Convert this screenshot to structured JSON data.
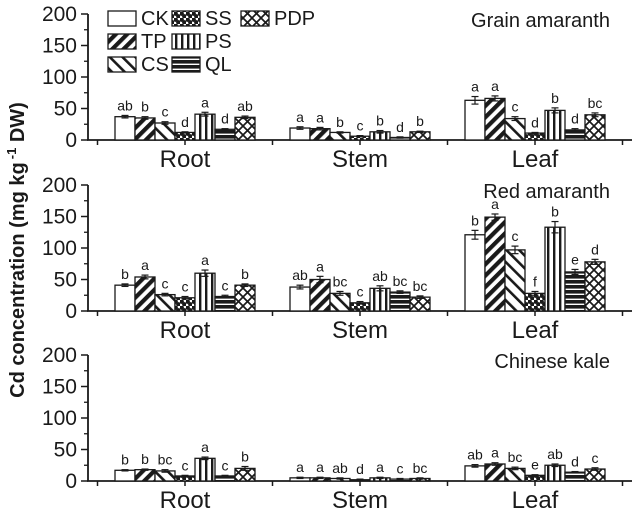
{
  "figure": {
    "ylabel_main": "Cd concentration (mg kg",
    "ylabel_sup": "-1",
    "ylabel_end": " DW)"
  },
  "axis": {
    "yticks": [
      0,
      50,
      100,
      150,
      200
    ],
    "minor_step": 25,
    "ylim": [
      0,
      200
    ],
    "categories": [
      "Root",
      "Stem",
      "Leaf"
    ]
  },
  "legend": {
    "rows": [
      [
        "CK",
        "SS",
        "PDP"
      ],
      [
        "TP",
        "PS"
      ],
      [
        "CS",
        "QL"
      ]
    ],
    "patterns": {
      "CK": "plain",
      "TP": "diag-up",
      "CS": "diag-down",
      "SS": "dots",
      "PS": "vertical",
      "QL": "horizontal-bands",
      "PDP": "crosshatch"
    }
  },
  "ink_color": "#1a1a1a",
  "chart_data": [
    {
      "type": "bar",
      "title": "Grain amaranth",
      "categories": [
        "Root",
        "Stem",
        "Leaf"
      ],
      "ylim": [
        0,
        200
      ],
      "grid": false,
      "series": [
        {
          "name": "CK",
          "values": [
            37,
            19,
            63
          ],
          "errors": [
            2,
            2,
            6
          ],
          "sig_letters": [
            "ab",
            "a",
            "a"
          ]
        },
        {
          "name": "TP",
          "values": [
            35,
            18,
            66
          ],
          "errors": [
            2,
            2,
            4
          ],
          "sig_letters": [
            "b",
            "a",
            "a"
          ]
        },
        {
          "name": "CS",
          "values": [
            27,
            12,
            34
          ],
          "errors": [
            2,
            1,
            3
          ],
          "sig_letters": [
            "c",
            "b",
            "c"
          ]
        },
        {
          "name": "SS",
          "values": [
            12,
            6,
            11
          ],
          "errors": [
            1,
            1,
            1
          ],
          "sig_letters": [
            "d",
            "c",
            "d"
          ]
        },
        {
          "name": "PS",
          "values": [
            41,
            13,
            47
          ],
          "errors": [
            3,
            2,
            4
          ],
          "sig_letters": [
            "a",
            "b",
            "b"
          ]
        },
        {
          "name": "QL",
          "values": [
            17,
            4,
            16
          ],
          "errors": [
            1,
            1,
            2
          ],
          "sig_letters": [
            "d",
            "d",
            "d"
          ]
        },
        {
          "name": "PDP",
          "values": [
            36,
            13,
            40
          ],
          "errors": [
            2,
            1,
            3
          ],
          "sig_letters": [
            "ab",
            "b",
            "bc"
          ]
        }
      ]
    },
    {
      "type": "bar",
      "title": "Red amaranth",
      "categories": [
        "Root",
        "Stem",
        "Leaf"
      ],
      "ylim": [
        0,
        200
      ],
      "grid": false,
      "series": [
        {
          "name": "CK",
          "values": [
            41,
            38,
            121
          ],
          "errors": [
            2,
            3,
            7
          ],
          "sig_letters": [
            "b",
            "ab",
            "b"
          ]
        },
        {
          "name": "TP",
          "values": [
            54,
            50,
            149
          ],
          "errors": [
            3,
            5,
            5
          ],
          "sig_letters": [
            "a",
            "a",
            "a"
          ]
        },
        {
          "name": "CS",
          "values": [
            26,
            28,
            97
          ],
          "errors": [
            2,
            3,
            6
          ],
          "sig_letters": [
            "c",
            "bc",
            "c"
          ]
        },
        {
          "name": "SS",
          "values": [
            21,
            13,
            28
          ],
          "errors": [
            2,
            2,
            3
          ],
          "sig_letters": [
            "c",
            "c",
            "f"
          ]
        },
        {
          "name": "PS",
          "values": [
            60,
            36,
            133
          ],
          "errors": [
            5,
            4,
            9
          ],
          "sig_letters": [
            "a",
            "ab",
            "b"
          ]
        },
        {
          "name": "QL",
          "values": [
            23,
            30,
            62
          ],
          "errors": [
            2,
            2,
            4
          ],
          "sig_letters": [
            "c",
            "bc",
            "e"
          ]
        },
        {
          "name": "PDP",
          "values": [
            41,
            22,
            78
          ],
          "errors": [
            2,
            2,
            4
          ],
          "sig_letters": [
            "b",
            "bc",
            "d"
          ]
        }
      ]
    },
    {
      "type": "bar",
      "title": "Chinese kale",
      "categories": [
        "Root",
        "Stem",
        "Leaf"
      ],
      "ylim": [
        0,
        200
      ],
      "grid": false,
      "series": [
        {
          "name": "CK",
          "values": [
            17,
            5,
            24
          ],
          "errors": [
            1,
            1,
            2
          ],
          "sig_letters": [
            "b",
            "a",
            "ab"
          ]
        },
        {
          "name": "TP",
          "values": [
            18,
            5,
            27
          ],
          "errors": [
            1,
            1,
            2
          ],
          "sig_letters": [
            "b",
            "a",
            "a"
          ]
        },
        {
          "name": "CS",
          "values": [
            16,
            4,
            20
          ],
          "errors": [
            2,
            1,
            2
          ],
          "sig_letters": [
            "bc",
            "ab",
            "bc"
          ]
        },
        {
          "name": "SS",
          "values": [
            8,
            2,
            9
          ],
          "errors": [
            1,
            1,
            1
          ],
          "sig_letters": [
            "c",
            "d",
            "e"
          ]
        },
        {
          "name": "PS",
          "values": [
            36,
            5,
            25
          ],
          "errors": [
            2,
            1,
            2
          ],
          "sig_letters": [
            "a",
            "a",
            "ab"
          ]
        },
        {
          "name": "QL",
          "values": [
            8,
            3,
            14
          ],
          "errors": [
            1,
            1,
            1
          ],
          "sig_letters": [
            "c",
            "c",
            "d"
          ]
        },
        {
          "name": "PDP",
          "values": [
            20,
            4,
            19
          ],
          "errors": [
            3,
            1,
            2
          ],
          "sig_letters": [
            "b",
            "bc",
            "c"
          ]
        }
      ]
    }
  ]
}
